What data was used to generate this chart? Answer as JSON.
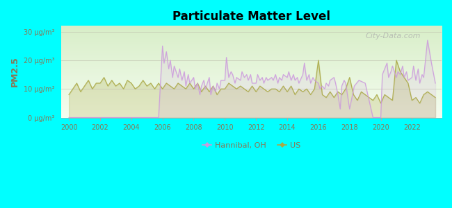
{
  "title": "Particulate Matter Level",
  "ylabel": "PM2.5",
  "background_outer": "#00FFFF",
  "ylim": [
    0,
    32
  ],
  "xlim": [
    1999.5,
    2023.9
  ],
  "yticks": [
    0,
    10,
    20,
    30
  ],
  "ytick_labels": [
    "0 μg/m³",
    "10 μg/m³",
    "20 μg/m³",
    "30 μg/m³"
  ],
  "xticks": [
    2000,
    2002,
    2004,
    2006,
    2008,
    2010,
    2012,
    2014,
    2016,
    2018,
    2020,
    2022
  ],
  "hannibal_color": "#cc99dd",
  "us_color": "#aaa844",
  "label_color": "#887755",
  "legend_labels": [
    "Hannibal, OH",
    "US"
  ],
  "watermark": "City-Data.com",
  "hannibal_x": [
    2000,
    2000.25,
    2000.5,
    2000.75,
    2001,
    2001.25,
    2001.5,
    2001.75,
    2002,
    2002.25,
    2002.5,
    2002.75,
    2003,
    2003.25,
    2003.5,
    2003.75,
    2004,
    2004.25,
    2004.5,
    2004.75,
    2005,
    2005.25,
    2005.5,
    2005.75,
    2006,
    2006.1,
    2006.25,
    2006.4,
    2006.5,
    2006.65,
    2006.75,
    2007,
    2007.1,
    2007.25,
    2007.4,
    2007.5,
    2007.65,
    2007.75,
    2008,
    2008.1,
    2008.25,
    2008.4,
    2008.5,
    2008.65,
    2008.75,
    2009,
    2009.1,
    2009.25,
    2009.4,
    2009.5,
    2009.65,
    2009.75,
    2010,
    2010.1,
    2010.25,
    2010.4,
    2010.5,
    2010.65,
    2010.75,
    2011,
    2011.1,
    2011.25,
    2011.4,
    2011.5,
    2011.65,
    2011.75,
    2012,
    2012.1,
    2012.25,
    2012.4,
    2012.5,
    2012.65,
    2012.75,
    2013,
    2013.1,
    2013.25,
    2013.4,
    2013.5,
    2013.65,
    2013.75,
    2014,
    2014.1,
    2014.25,
    2014.4,
    2014.5,
    2014.65,
    2014.75,
    2015,
    2015.1,
    2015.25,
    2015.4,
    2015.5,
    2015.65,
    2015.75,
    2016,
    2016.1,
    2016.25,
    2016.4,
    2016.5,
    2016.65,
    2016.75,
    2017,
    2017.1,
    2017.25,
    2017.4,
    2017.5,
    2017.65,
    2017.75,
    2018,
    2018.3,
    2018.6,
    2019,
    2019.5,
    2020,
    2020.1,
    2020.25,
    2020.4,
    2020.5,
    2020.65,
    2020.75,
    2021,
    2021.1,
    2021.25,
    2021.4,
    2021.5,
    2021.65,
    2021.75,
    2022,
    2022.1,
    2022.25,
    2022.4,
    2022.5,
    2022.65,
    2022.75,
    2023,
    2023.25,
    2023.5
  ],
  "hannibal_y": [
    0,
    0,
    0,
    0,
    0,
    0,
    0,
    0,
    0,
    0,
    0,
    0,
    0,
    0,
    0,
    0,
    0,
    0,
    0,
    0,
    0,
    0,
    0,
    0,
    25,
    19,
    23,
    17,
    20,
    14,
    18,
    14,
    17,
    13,
    16,
    11,
    15,
    12,
    14,
    10,
    12,
    8,
    11,
    13,
    10,
    14,
    8,
    11,
    9,
    12,
    10,
    13,
    13,
    21,
    14,
    16,
    15,
    12,
    14,
    13,
    16,
    14,
    15,
    13,
    15,
    12,
    12,
    15,
    13,
    14,
    12,
    14,
    13,
    14,
    13,
    15,
    12,
    14,
    13,
    15,
    14,
    16,
    13,
    15,
    13,
    14,
    12,
    15,
    19,
    13,
    15,
    12,
    14,
    13,
    12,
    10,
    11,
    10,
    12,
    11,
    13,
    14,
    12,
    8,
    3,
    11,
    13,
    12,
    3,
    11,
    13,
    12,
    0,
    0,
    15,
    17,
    19,
    14,
    16,
    18,
    14,
    16,
    15,
    18,
    14,
    16,
    13,
    14,
    18,
    13,
    17,
    12,
    15,
    14,
    27,
    19,
    12
  ],
  "us_x": [
    2000,
    2000.25,
    2000.5,
    2000.75,
    2001,
    2001.25,
    2001.5,
    2001.75,
    2002,
    2002.25,
    2002.5,
    2002.75,
    2003,
    2003.25,
    2003.5,
    2003.75,
    2004,
    2004.25,
    2004.5,
    2004.75,
    2005,
    2005.25,
    2005.5,
    2005.75,
    2006,
    2006.25,
    2006.5,
    2006.75,
    2007,
    2007.25,
    2007.5,
    2007.75,
    2008,
    2008.25,
    2008.5,
    2008.75,
    2009,
    2009.25,
    2009.5,
    2009.75,
    2010,
    2010.25,
    2010.5,
    2010.75,
    2011,
    2011.25,
    2011.5,
    2011.75,
    2012,
    2012.25,
    2012.5,
    2012.75,
    2013,
    2013.25,
    2013.5,
    2013.75,
    2014,
    2014.25,
    2014.5,
    2014.75,
    2015,
    2015.25,
    2015.5,
    2015.75,
    2016,
    2016.25,
    2016.5,
    2016.75,
    2017,
    2017.25,
    2017.5,
    2017.75,
    2018,
    2018.25,
    2018.5,
    2018.75,
    2019,
    2019.25,
    2019.5,
    2019.75,
    2020,
    2020.25,
    2020.5,
    2020.75,
    2021,
    2021.25,
    2021.5,
    2021.75,
    2022,
    2022.25,
    2022.5,
    2022.75,
    2023,
    2023.25,
    2023.5
  ],
  "us_y": [
    8,
    10,
    12,
    9,
    11,
    13,
    10,
    12,
    12,
    14,
    11,
    13,
    11,
    12,
    10,
    13,
    12,
    10,
    11,
    13,
    11,
    12,
    10,
    12,
    10,
    12,
    11,
    10,
    12,
    11,
    10,
    12,
    10,
    12,
    9,
    11,
    9,
    11,
    8,
    10,
    10,
    12,
    11,
    10,
    11,
    10,
    9,
    11,
    9,
    11,
    10,
    9,
    10,
    10,
    9,
    11,
    9,
    11,
    8,
    10,
    9,
    10,
    8,
    10,
    20,
    8,
    7,
    9,
    7,
    9,
    8,
    10,
    14,
    8,
    6,
    9,
    8,
    7,
    6,
    8,
    5,
    8,
    7,
    6,
    20,
    16,
    14,
    12,
    6,
    7,
    5,
    8,
    9,
    8,
    7
  ]
}
